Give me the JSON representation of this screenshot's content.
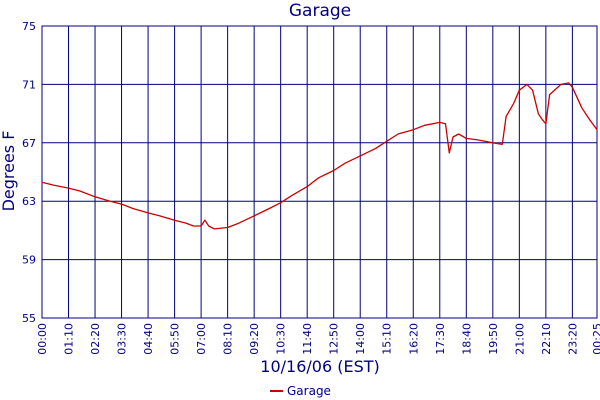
{
  "chart_data": {
    "type": "line",
    "title": "Garage",
    "xlabel": "10/16/06 (EST)",
    "ylabel": "Degrees F",
    "ylim": [
      55,
      75
    ],
    "yticks": [
      55,
      59,
      63,
      67,
      71,
      75
    ],
    "xticks": [
      "00:00",
      "01:10",
      "02:20",
      "03:30",
      "04:40",
      "05:50",
      "07:00",
      "08:10",
      "09:20",
      "10:30",
      "11:40",
      "12:50",
      "14:00",
      "15:10",
      "16:20",
      "17:30",
      "18:40",
      "19:50",
      "21:00",
      "22:10",
      "23:20",
      "00:25"
    ],
    "grid": true,
    "legend_position": "bottom",
    "colors": {
      "series": "#cc0000",
      "grid": "#000080",
      "text": "#000080"
    },
    "series": [
      {
        "name": "Garage",
        "points": [
          [
            "00:00",
            64.3
          ],
          [
            "00:30",
            64.1
          ],
          [
            "01:10",
            63.9
          ],
          [
            "01:40",
            63.7
          ],
          [
            "02:20",
            63.3
          ],
          [
            "03:00",
            63.0
          ],
          [
            "03:30",
            62.8
          ],
          [
            "04:00",
            62.5
          ],
          [
            "04:40",
            62.2
          ],
          [
            "05:10",
            62.0
          ],
          [
            "05:50",
            61.7
          ],
          [
            "06:20",
            61.5
          ],
          [
            "06:40",
            61.3
          ],
          [
            "07:00",
            61.3
          ],
          [
            "07:10",
            61.7
          ],
          [
            "07:20",
            61.3
          ],
          [
            "07:35",
            61.1
          ],
          [
            "08:10",
            61.2
          ],
          [
            "08:40",
            61.5
          ],
          [
            "09:20",
            62.0
          ],
          [
            "10:00",
            62.5
          ],
          [
            "10:30",
            62.9
          ],
          [
            "11:00",
            63.4
          ],
          [
            "11:40",
            64.0
          ],
          [
            "12:10",
            64.6
          ],
          [
            "12:50",
            65.1
          ],
          [
            "13:20",
            65.6
          ],
          [
            "14:00",
            66.1
          ],
          [
            "14:40",
            66.6
          ],
          [
            "15:10",
            67.1
          ],
          [
            "15:40",
            67.6
          ],
          [
            "16:20",
            67.9
          ],
          [
            "16:50",
            68.2
          ],
          [
            "17:30",
            68.4
          ],
          [
            "17:45",
            68.3
          ],
          [
            "17:55",
            66.3
          ],
          [
            "18:05",
            67.4
          ],
          [
            "18:20",
            67.6
          ],
          [
            "18:40",
            67.3
          ],
          [
            "19:10",
            67.2
          ],
          [
            "19:50",
            67.0
          ],
          [
            "20:15",
            66.9
          ],
          [
            "20:25",
            68.8
          ],
          [
            "20:45",
            69.7
          ],
          [
            "21:00",
            70.6
          ],
          [
            "21:20",
            71.0
          ],
          [
            "21:35",
            70.6
          ],
          [
            "21:50",
            69.0
          ],
          [
            "22:00",
            68.6
          ],
          [
            "22:10",
            68.3
          ],
          [
            "22:20",
            70.3
          ],
          [
            "22:50",
            71.0
          ],
          [
            "23:10",
            71.1
          ],
          [
            "23:20",
            70.8
          ],
          [
            "23:45",
            69.4
          ],
          [
            "00:05",
            68.6
          ],
          [
            "00:25",
            67.9
          ]
        ]
      }
    ]
  }
}
